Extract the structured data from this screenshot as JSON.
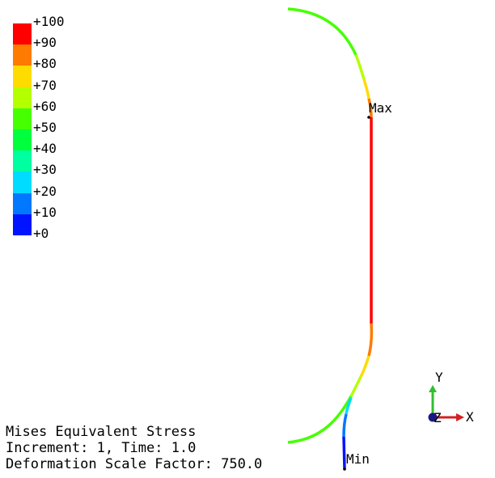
{
  "legend": {
    "ticks": [
      "+100",
      "+90",
      "+80",
      "+70",
      "+60",
      "+50",
      "+40",
      "+30",
      "+20",
      "+10",
      "+0"
    ],
    "colors": [
      "#ff0000",
      "#ff7a00",
      "#ffdc00",
      "#b4ff00",
      "#46ff00",
      "#00ff3c",
      "#00ffa0",
      "#00dcff",
      "#0078ff",
      "#0014ff"
    ]
  },
  "markers": {
    "max_label": "Max",
    "min_label": "Min"
  },
  "triad": {
    "x_label": "X",
    "y_label": "Y",
    "z_label": "Z"
  },
  "info": {
    "line1": "Mises Equivalent Stress",
    "line2": "Increment: 1, Time: 1.0",
    "line3": "Deformation Scale Factor: 750.0"
  }
}
